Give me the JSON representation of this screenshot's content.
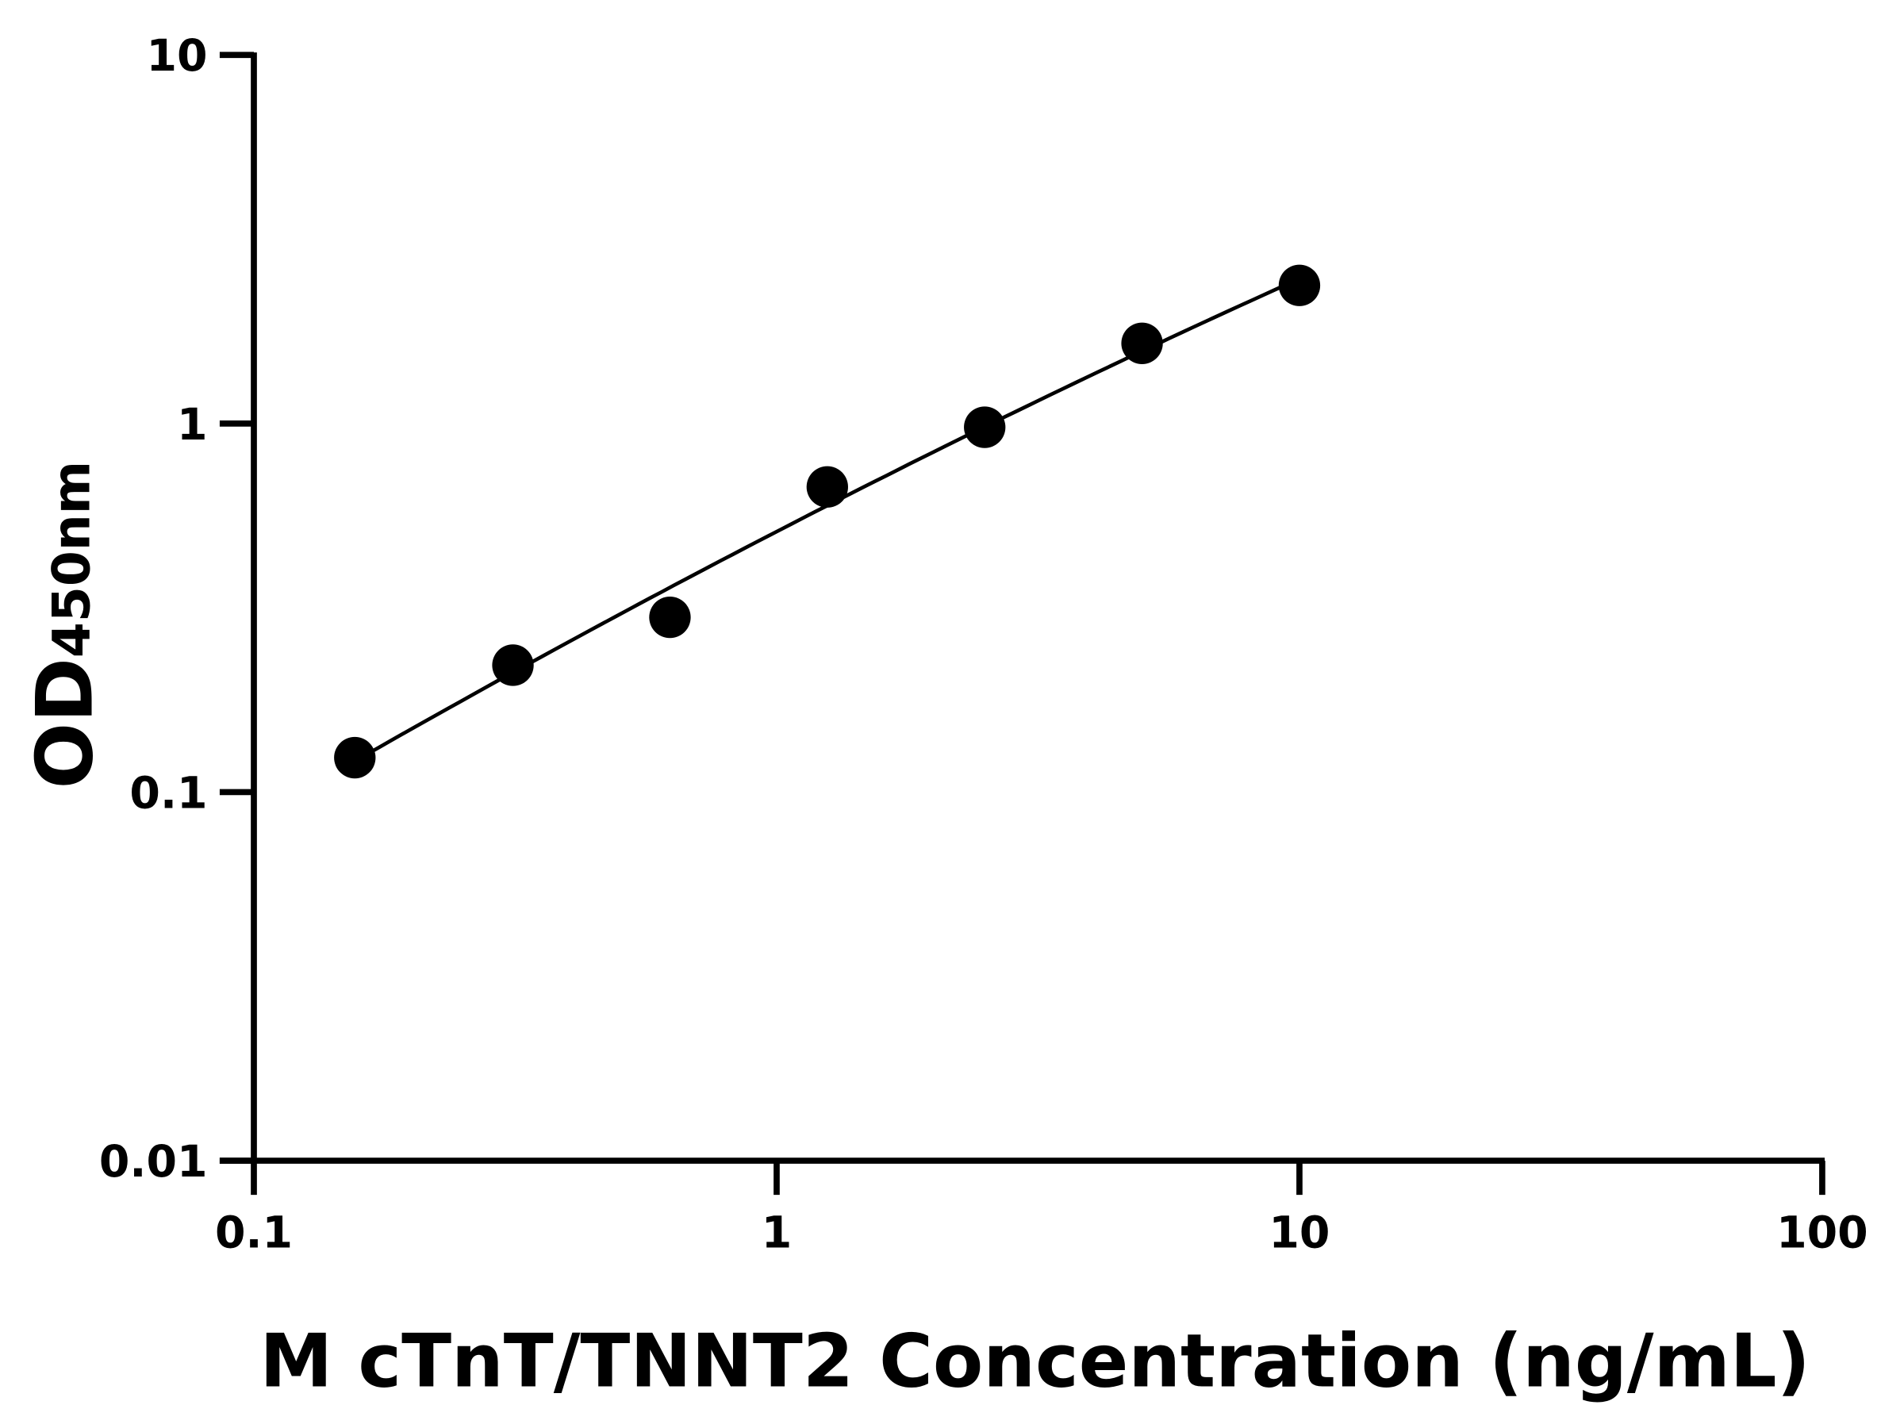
{
  "chart_data": {
    "type": "scatter",
    "title": "",
    "xlabel": "M cTnT/TNNT2 Concentration (ng/mL)",
    "ylabel": "OD",
    "ylabel_subscript": "450nm",
    "x_scale": "log",
    "y_scale": "log",
    "xlim": [
      0.1,
      100
    ],
    "ylim": [
      0.01,
      10
    ],
    "x_ticks": [
      {
        "value": 0.1,
        "label": "0.1"
      },
      {
        "value": 1,
        "label": "1"
      },
      {
        "value": 10,
        "label": "10"
      },
      {
        "value": 100,
        "label": "100"
      }
    ],
    "y_ticks": [
      {
        "value": 0.01,
        "label": "0.01"
      },
      {
        "value": 0.1,
        "label": "0.1"
      },
      {
        "value": 1,
        "label": "1"
      },
      {
        "value": 10,
        "label": "10"
      }
    ],
    "grid": false,
    "series": [
      {
        "x": [
          0.156,
          0.313,
          0.625,
          1.25,
          2.5,
          5,
          10
        ],
        "y": [
          0.124,
          0.221,
          0.298,
          0.673,
          0.977,
          1.65,
          2.37
        ],
        "marker": "filled-circle",
        "fit_curve": true,
        "color": "#000000"
      }
    ]
  }
}
